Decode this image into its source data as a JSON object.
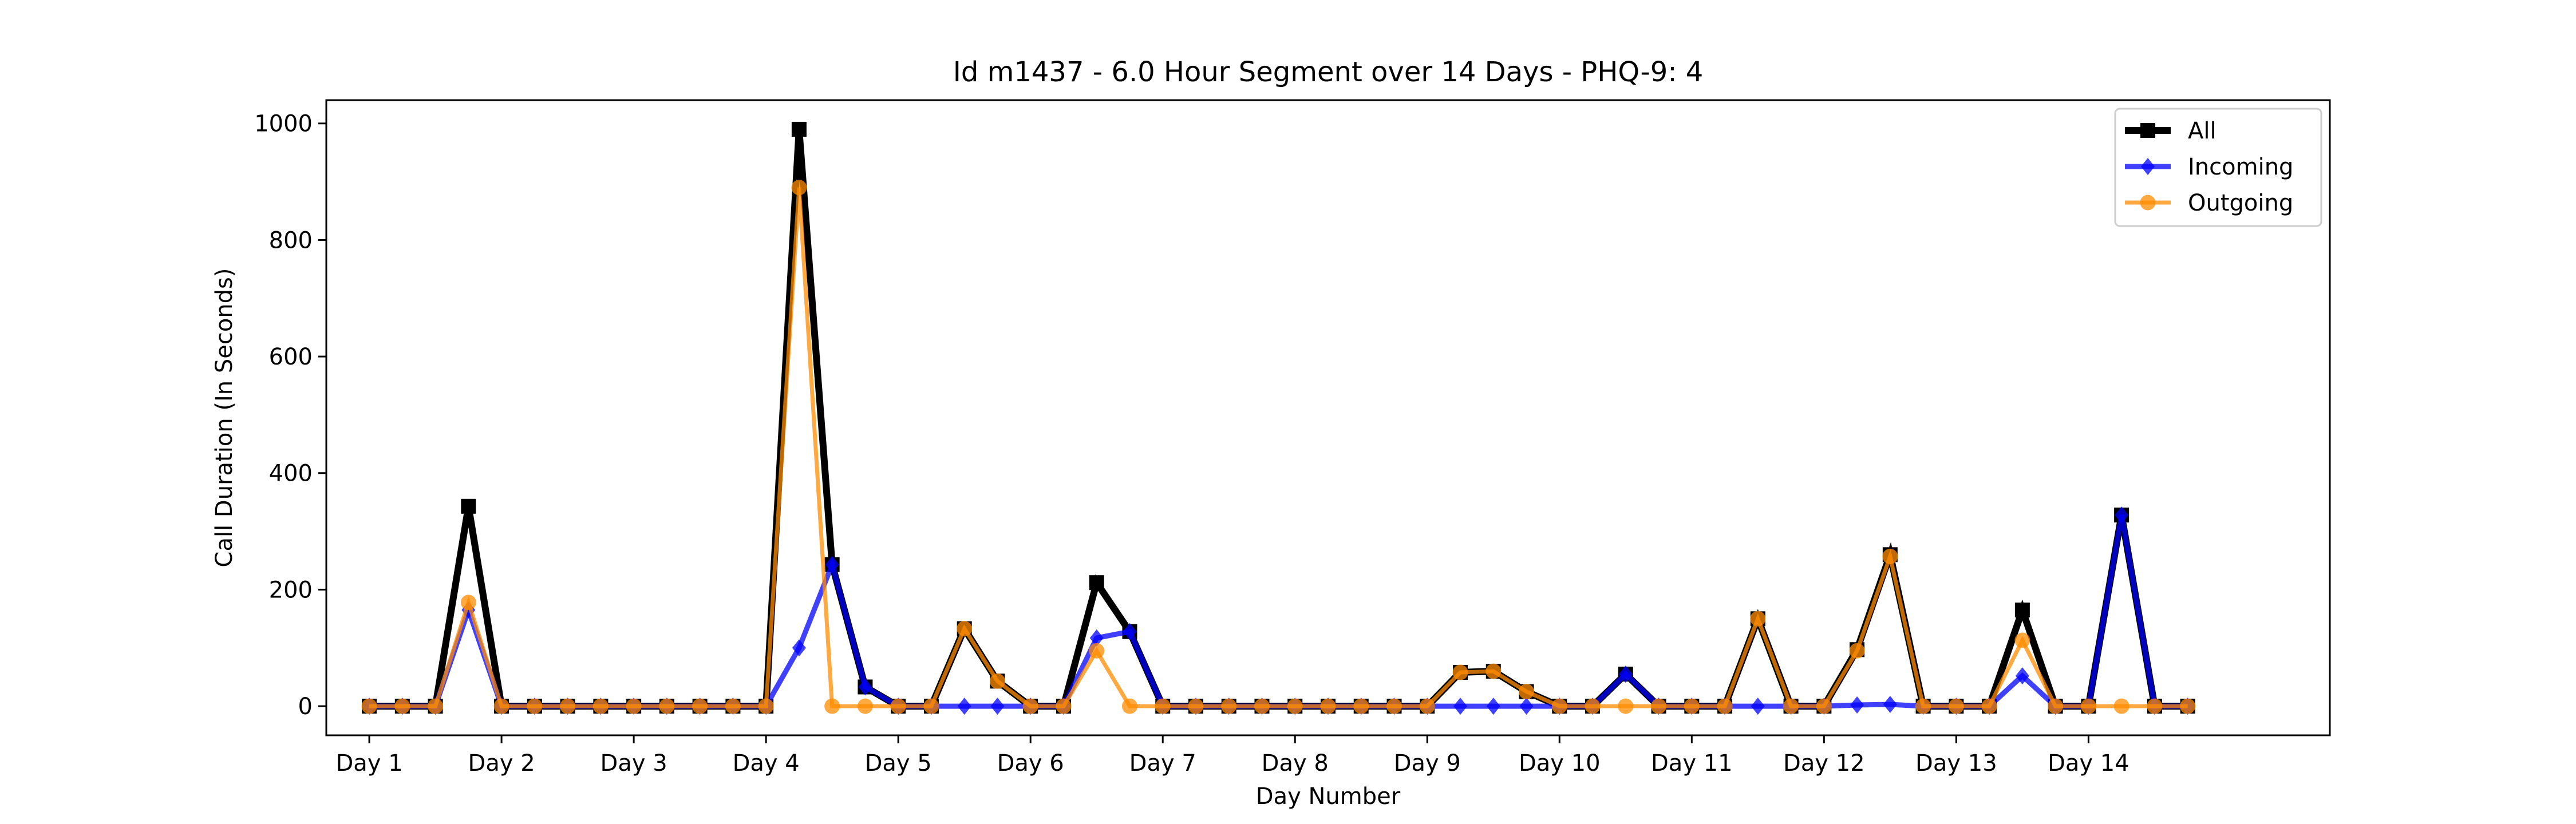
{
  "chart_data": {
    "type": "line",
    "title": "Id m1437 - 6.0 Hour Segment over 14 Days - PHQ-9: 4",
    "xlabel": "Day Number",
    "ylabel": "Call Duration (In Seconds)",
    "x_ticks": [
      {
        "label": "Day 1",
        "index": 0
      },
      {
        "label": "Day 2",
        "index": 4
      },
      {
        "label": "Day 3",
        "index": 8
      },
      {
        "label": "Day 4",
        "index": 12
      },
      {
        "label": "Day 5",
        "index": 16
      },
      {
        "label": "Day 6",
        "index": 20
      },
      {
        "label": "Day 7",
        "index": 24
      },
      {
        "label": "Day 8",
        "index": 28
      },
      {
        "label": "Day 9",
        "index": 32
      },
      {
        "label": "Day 10",
        "index": 36
      },
      {
        "label": "Day 11",
        "index": 40
      },
      {
        "label": "Day 12",
        "index": 44
      },
      {
        "label": "Day 13",
        "index": 48
      },
      {
        "label": "Day 14",
        "index": 52
      }
    ],
    "xlim": [
      -1.3,
      59.3
    ],
    "ylim": [
      -50,
      1040
    ],
    "y_ticks": [
      0,
      200,
      400,
      600,
      800,
      1000
    ],
    "legend_position": "top-right",
    "grid": false,
    "series": [
      {
        "name": "All",
        "color": "#000000",
        "marker": "square",
        "values": [
          0,
          0,
          0,
          343,
          0,
          0,
          0,
          0,
          0,
          0,
          0,
          0,
          0,
          990,
          243,
          33,
          0,
          0,
          133,
          43,
          0,
          0,
          212,
          128,
          0,
          0,
          0,
          0,
          0,
          0,
          0,
          0,
          0,
          58,
          60,
          25,
          0,
          0,
          55,
          0,
          0,
          0,
          150,
          0,
          0,
          97,
          260,
          0,
          0,
          0,
          165,
          0,
          0,
          328,
          0,
          0
        ]
      },
      {
        "name": "Incoming",
        "color": "#0000ff",
        "marker": "diamond",
        "values": [
          0,
          0,
          0,
          165,
          0,
          0,
          0,
          0,
          0,
          0,
          0,
          0,
          0,
          100,
          243,
          33,
          0,
          0,
          0,
          0,
          0,
          0,
          117,
          128,
          0,
          0,
          0,
          0,
          0,
          0,
          0,
          0,
          0,
          0,
          0,
          0,
          0,
          0,
          55,
          0,
          0,
          0,
          0,
          0,
          0,
          2,
          3,
          0,
          0,
          0,
          52,
          0,
          0,
          328,
          0,
          0
        ]
      },
      {
        "name": "Outgoing",
        "color": "#ff8c00",
        "marker": "circle",
        "values": [
          0,
          0,
          0,
          178,
          0,
          0,
          0,
          0,
          0,
          0,
          0,
          0,
          0,
          890,
          0,
          0,
          0,
          0,
          133,
          43,
          0,
          0,
          95,
          0,
          0,
          0,
          0,
          0,
          0,
          0,
          0,
          0,
          0,
          58,
          60,
          25,
          0,
          0,
          0,
          0,
          0,
          0,
          150,
          0,
          0,
          95,
          257,
          0,
          0,
          0,
          113,
          0,
          0,
          0,
          0,
          0
        ]
      }
    ]
  }
}
